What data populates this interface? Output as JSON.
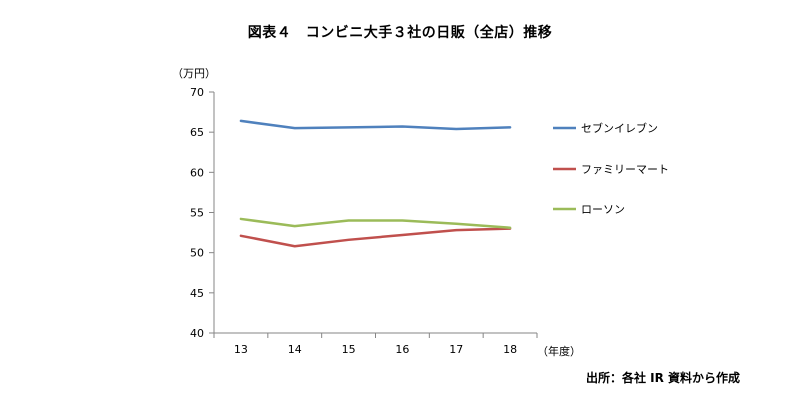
{
  "title": "図表４　コンビニ大手３社の日販（全店）推移",
  "source": "出所：各社 IR 資料から作成",
  "chart_data": {
    "type": "line",
    "title": "図表４　コンビニ大手３社の日販（全店）推移",
    "ylabel": "（万円）",
    "xlabel": "（年度）",
    "x": [
      "13",
      "14",
      "15",
      "16",
      "17",
      "18"
    ],
    "ylim": [
      40,
      70
    ],
    "yticks": [
      40,
      45,
      50,
      55,
      60,
      65,
      70
    ],
    "grid": false,
    "legend": "right",
    "series": [
      {
        "name": "セブンイレブン",
        "color": "#4f81bd",
        "values": [
          66.4,
          65.5,
          65.6,
          65.7,
          65.4,
          65.6
        ]
      },
      {
        "name": "ファミリーマート",
        "color": "#c0504d",
        "values": [
          52.1,
          50.8,
          51.6,
          52.2,
          52.8,
          53.0
        ]
      },
      {
        "name": "ローソン",
        "color": "#9bbb59",
        "values": [
          54.2,
          53.3,
          54.0,
          54.0,
          53.6,
          53.1
        ]
      }
    ]
  }
}
